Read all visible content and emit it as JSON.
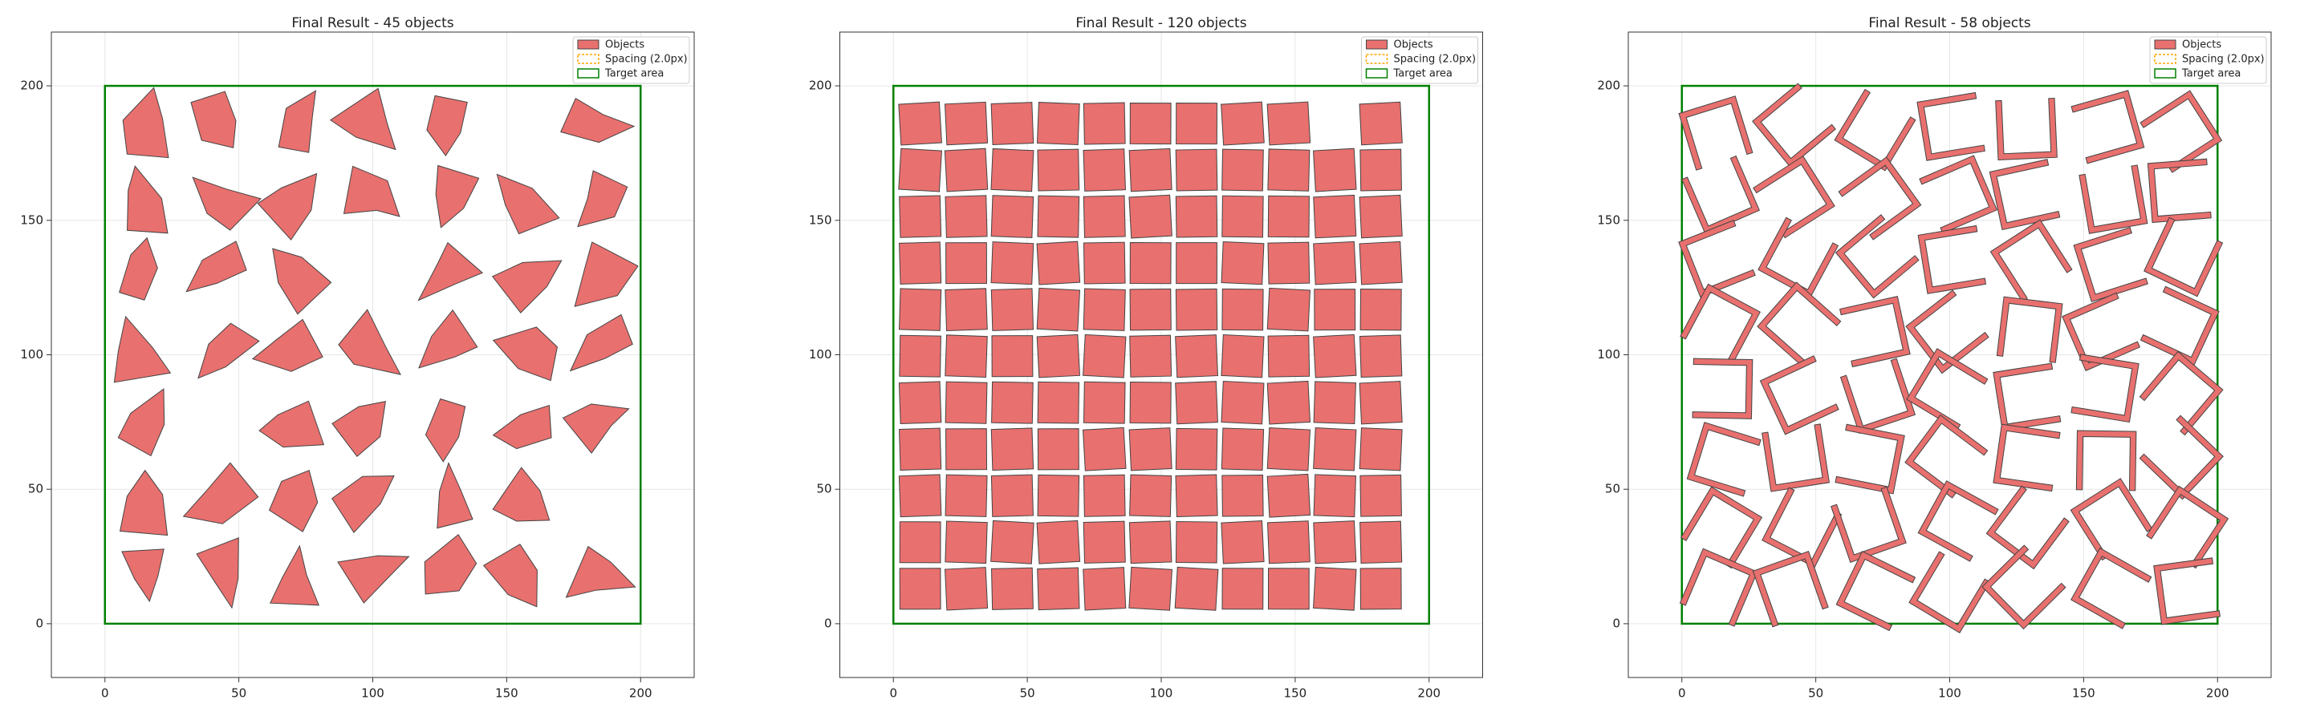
{
  "chart_data": [
    {
      "type": "polygon",
      "title": "Final Result - 45 objects",
      "xlim": [
        -20,
        220
      ],
      "ylim": [
        -20,
        220
      ],
      "xticks": [
        0,
        50,
        100,
        150,
        200
      ],
      "yticks": [
        0,
        50,
        100,
        150,
        200
      ],
      "grid": true,
      "legend": "upper right",
      "target_area": {
        "x": [
          0,
          200
        ],
        "y": [
          0,
          200
        ]
      },
      "series": [
        {
          "name": "Objects",
          "color": "#e8706e"
        },
        {
          "name": "Spacing (2.0px)",
          "color": "orange"
        },
        {
          "name": "Target area",
          "color": "green"
        }
      ]
    },
    {
      "type": "polygon",
      "title": "Final Result - 120 objects",
      "xlim": [
        -20,
        220
      ],
      "ylim": [
        -20,
        220
      ],
      "xticks": [
        0,
        50,
        100,
        150,
        200
      ],
      "yticks": [
        0,
        50,
        100,
        150,
        200
      ],
      "grid": true,
      "legend": "upper right",
      "target_area": {
        "x": [
          0,
          200
        ],
        "y": [
          0,
          200
        ]
      },
      "series": [
        {
          "name": "Objects",
          "color": "#e8706e"
        },
        {
          "name": "Spacing (2.0px)",
          "color": "orange"
        },
        {
          "name": "Target area",
          "color": "green"
        }
      ]
    },
    {
      "type": "polygon",
      "title": "Final Result - 58 objects",
      "xlim": [
        -20,
        220
      ],
      "ylim": [
        -20,
        220
      ],
      "xticks": [
        0,
        50,
        100,
        150,
        200
      ],
      "yticks": [
        0,
        50,
        100,
        150,
        200
      ],
      "grid": true,
      "legend": "upper right",
      "target_area": {
        "x": [
          0,
          200
        ],
        "y": [
          0,
          200
        ]
      },
      "series": [
        {
          "name": "Objects",
          "color": "#e8706e"
        },
        {
          "name": "Spacing (2.0px)",
          "color": "orange"
        },
        {
          "name": "Target area",
          "color": "green"
        }
      ]
    }
  ]
}
